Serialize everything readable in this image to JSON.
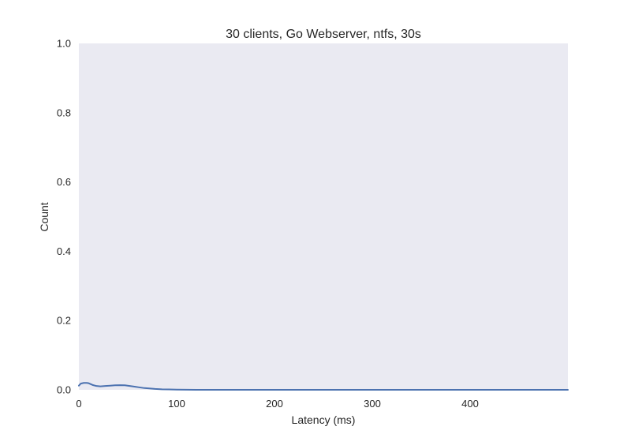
{
  "chart_data": {
    "type": "line",
    "title": "30 clients, Go Webserver, ntfs, 30s",
    "xlabel": "Latency (ms)",
    "ylabel": "Count",
    "xlim": [
      0,
      500
    ],
    "ylim": [
      0,
      1.0
    ],
    "x_ticks": [
      0,
      100,
      200,
      300,
      400
    ],
    "x_tick_labels": [
      "0",
      "100",
      "200",
      "300",
      "400"
    ],
    "y_ticks": [
      0.0,
      0.2,
      0.4,
      0.6,
      0.8,
      1.0
    ],
    "y_tick_labels": [
      "0.0",
      "0.2",
      "0.4",
      "0.6",
      "0.8",
      "1.0"
    ],
    "grid": false,
    "background_color": "#eaeaf2",
    "series": [
      {
        "color": "#4c72b0",
        "x": [
          0,
          2,
          5,
          8,
          10,
          14,
          18,
          22,
          27,
          32,
          37,
          42,
          47,
          52,
          57,
          62,
          67,
          72,
          78,
          85,
          92,
          100,
          110,
          120,
          150,
          200,
          250,
          300,
          350,
          400,
          450,
          500
        ],
        "y": [
          0.012,
          0.018,
          0.02,
          0.02,
          0.019,
          0.014,
          0.011,
          0.01,
          0.011,
          0.012,
          0.013,
          0.0135,
          0.013,
          0.011,
          0.009,
          0.007,
          0.005,
          0.004,
          0.0025,
          0.0015,
          0.001,
          0.0006,
          0.0003,
          0.0001,
          0.0,
          0.0,
          0.0,
          0.0,
          0.0,
          0.0,
          0.0,
          0.0
        ]
      }
    ]
  }
}
